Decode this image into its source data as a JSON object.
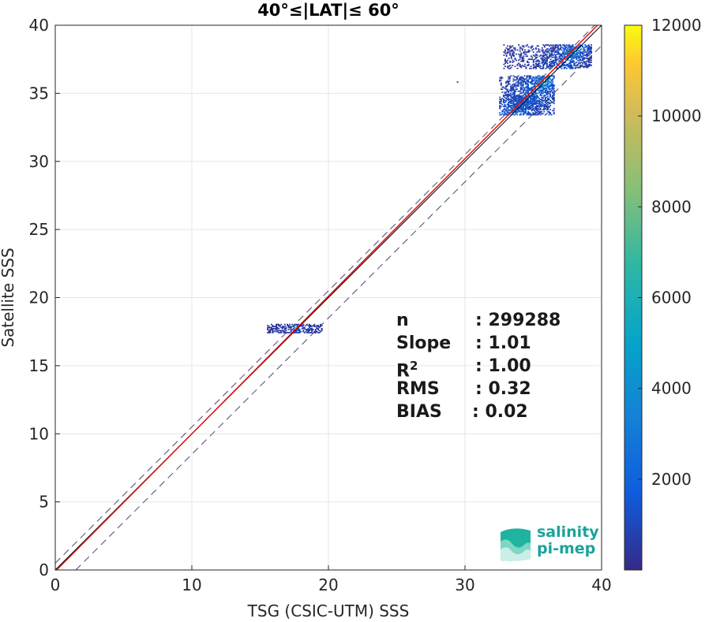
{
  "chart_data": {
    "type": "heatmap",
    "title": "40°≤|LAT|≤ 60°",
    "xlabel": "TSG (CSIC-UTM) SSS",
    "ylabel": "Satellite SSS",
    "xlim": [
      0,
      40
    ],
    "ylim": [
      0,
      40
    ],
    "xticks": [
      "0",
      "10",
      "20",
      "30",
      "40"
    ],
    "yticks": [
      "0",
      "5",
      "10",
      "15",
      "20",
      "25",
      "30",
      "35",
      "40"
    ],
    "grid": true,
    "colorbar": {
      "range": [
        0,
        12000
      ],
      "ticks": [
        "2000",
        "4000",
        "6000",
        "8000",
        "10000",
        "12000"
      ],
      "colormap": "parula"
    },
    "lines": [
      {
        "kind": "identity",
        "slope": 1,
        "intercept": 0,
        "color": "#000000",
        "style": "solid"
      },
      {
        "kind": "regression",
        "slope": 1.01,
        "intercept": -0.1,
        "color": "#e01010",
        "style": "solid"
      },
      {
        "kind": "bound-upper",
        "slope": 1,
        "intercept": 0.5,
        "color": "#4a4a6a",
        "style": "dashed"
      },
      {
        "kind": "bound-lower",
        "slope": 1,
        "intercept": -1.5,
        "color": "#4a4a6a",
        "style": "dashed"
      }
    ],
    "density_clusters": [
      {
        "x": [
          15.5,
          19.5
        ],
        "y": [
          17.4,
          18.0
        ],
        "peak": 1500
      },
      {
        "x": [
          32.5,
          36.5
        ],
        "y": [
          33.4,
          36.3
        ],
        "peak": 3500
      },
      {
        "x": [
          33.5,
          35.2
        ],
        "y": [
          33.8,
          34.8
        ],
        "peak": 2500
      },
      {
        "x": [
          35.3,
          36.2
        ],
        "y": [
          35.5,
          36.2
        ],
        "peak": 6500
      },
      {
        "x": [
          32.8,
          39.2
        ],
        "y": [
          36.8,
          38.6
        ],
        "peak": 2500
      },
      {
        "x": [
          37.2,
          38.2
        ],
        "y": [
          37.6,
          38.4
        ],
        "peak": 5000
      },
      {
        "x": [
          29.4,
          29.6
        ],
        "y": [
          35.8,
          36.0
        ],
        "peak": 300
      }
    ]
  },
  "stats": [
    {
      "label": "n",
      "sup": "",
      "value": ": 299288"
    },
    {
      "label": "Slope",
      "sup": "",
      "value": ": 1.01"
    },
    {
      "label": "R",
      "sup": "2",
      "value": ": 1.00"
    },
    {
      "label": "RMS",
      "sup": "",
      "value": ": 0.32"
    },
    {
      "label": "BIAS",
      "sup": "",
      "value": ": 0.02"
    }
  ],
  "logo": {
    "line1": "salinity",
    "line2": "pi-mep"
  }
}
